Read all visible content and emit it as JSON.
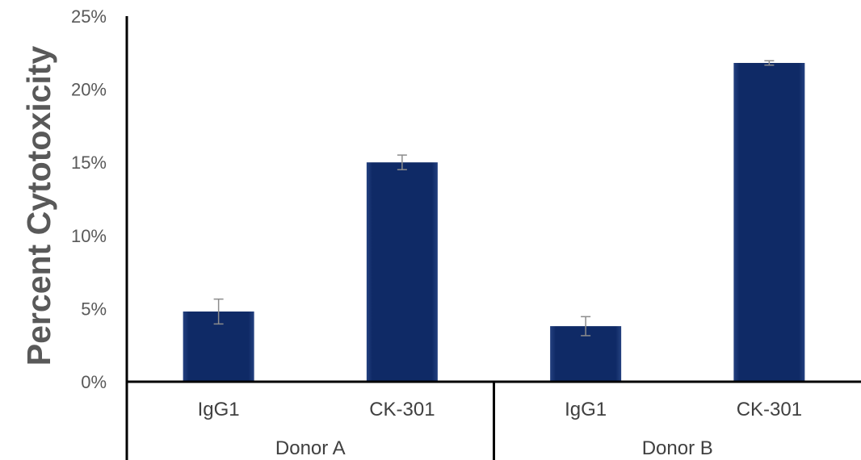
{
  "chart_data": {
    "type": "bar",
    "ylabel": "Percent Cytotoxicity",
    "xlabel": "",
    "title": "",
    "ylim": [
      0,
      25
    ],
    "yticks": [
      "0%",
      "5%",
      "10%",
      "15%",
      "20%",
      "25%"
    ],
    "ytick_values": [
      0,
      5,
      10,
      15,
      20,
      25
    ],
    "groups": [
      {
        "name": "Donor A",
        "categories": [
          "IgG1",
          "CK-301"
        ]
      },
      {
        "name": "Donor B",
        "categories": [
          "IgG1",
          "CK-301"
        ]
      }
    ],
    "series": [
      {
        "values": [
          4.8,
          15.0,
          3.8,
          21.8
        ],
        "errors": [
          0.85,
          0.5,
          0.65,
          0.15
        ]
      }
    ],
    "bar_color": "#0d2a6b",
    "grid": false,
    "legend": "none"
  }
}
